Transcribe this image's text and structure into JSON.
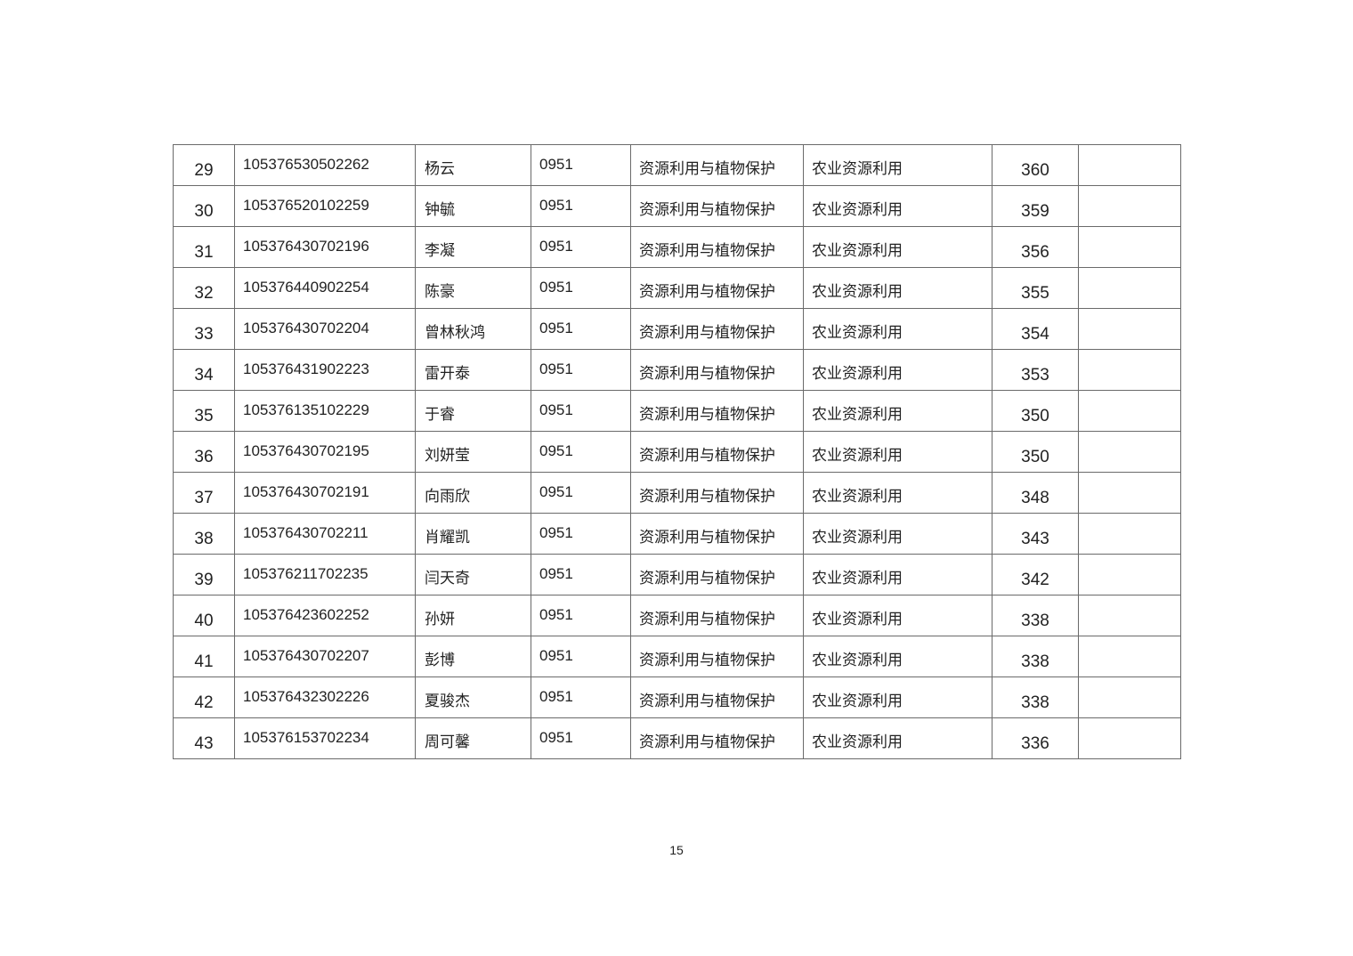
{
  "rows": [
    {
      "no": "29",
      "id": "105376530502262",
      "name": "杨云",
      "code": "0951",
      "major": "资源利用与植物保护",
      "direction": "农业资源利用",
      "score": "360",
      "note": ""
    },
    {
      "no": "30",
      "id": "105376520102259",
      "name": "钟毓",
      "code": "0951",
      "major": "资源利用与植物保护",
      "direction": "农业资源利用",
      "score": "359",
      "note": ""
    },
    {
      "no": "31",
      "id": "105376430702196",
      "name": "李凝",
      "code": "0951",
      "major": "资源利用与植物保护",
      "direction": "农业资源利用",
      "score": "356",
      "note": ""
    },
    {
      "no": "32",
      "id": "105376440902254",
      "name": "陈豪",
      "code": "0951",
      "major": "资源利用与植物保护",
      "direction": "农业资源利用",
      "score": "355",
      "note": ""
    },
    {
      "no": "33",
      "id": "105376430702204",
      "name": "曾林秋鸿",
      "code": "0951",
      "major": "资源利用与植物保护",
      "direction": "农业资源利用",
      "score": "354",
      "note": ""
    },
    {
      "no": "34",
      "id": "105376431902223",
      "name": "雷开泰",
      "code": "0951",
      "major": "资源利用与植物保护",
      "direction": "农业资源利用",
      "score": "353",
      "note": ""
    },
    {
      "no": "35",
      "id": "105376135102229",
      "name": "于睿",
      "code": "0951",
      "major": "资源利用与植物保护",
      "direction": "农业资源利用",
      "score": "350",
      "note": ""
    },
    {
      "no": "36",
      "id": "105376430702195",
      "name": "刘妍莹",
      "code": "0951",
      "major": "资源利用与植物保护",
      "direction": "农业资源利用",
      "score": "350",
      "note": ""
    },
    {
      "no": "37",
      "id": "105376430702191",
      "name": "向雨欣",
      "code": "0951",
      "major": "资源利用与植物保护",
      "direction": "农业资源利用",
      "score": "348",
      "note": ""
    },
    {
      "no": "38",
      "id": "105376430702211",
      "name": "肖耀凯",
      "code": "0951",
      "major": "资源利用与植物保护",
      "direction": "农业资源利用",
      "score": "343",
      "note": ""
    },
    {
      "no": "39",
      "id": "105376211702235",
      "name": "闫天奇",
      "code": "0951",
      "major": "资源利用与植物保护",
      "direction": "农业资源利用",
      "score": "342",
      "note": ""
    },
    {
      "no": "40",
      "id": "105376423602252",
      "name": "孙妍",
      "code": "0951",
      "major": "资源利用与植物保护",
      "direction": "农业资源利用",
      "score": "338",
      "note": ""
    },
    {
      "no": "41",
      "id": "105376430702207",
      "name": "彭博",
      "code": "0951",
      "major": "资源利用与植物保护",
      "direction": "农业资源利用",
      "score": "338",
      "note": ""
    },
    {
      "no": "42",
      "id": "105376432302226",
      "name": "夏骏杰",
      "code": "0951",
      "major": "资源利用与植物保护",
      "direction": "农业资源利用",
      "score": "338",
      "note": ""
    },
    {
      "no": "43",
      "id": "105376153702234",
      "name": "周可馨",
      "code": "0951",
      "major": "资源利用与植物保护",
      "direction": "农业资源利用",
      "score": "336",
      "note": ""
    }
  ],
  "page_number": "15"
}
